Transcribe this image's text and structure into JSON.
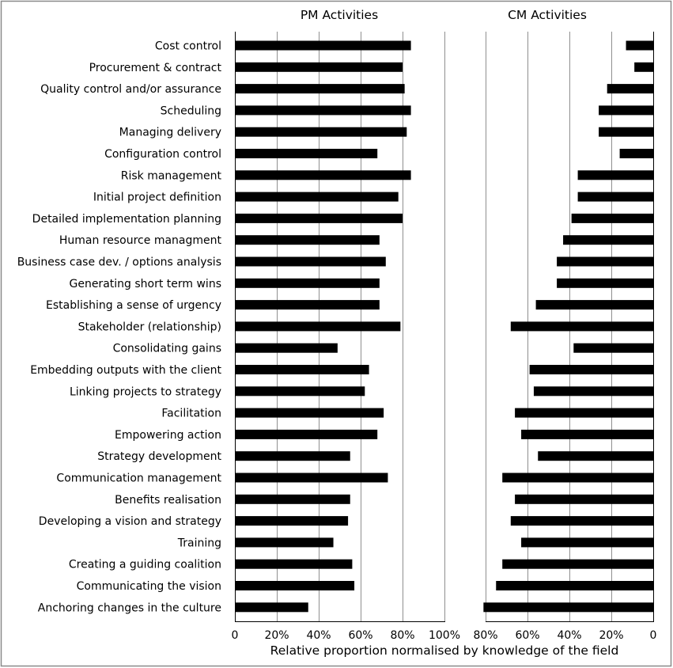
{
  "chart_data": {
    "type": "bar",
    "orientation": "horizontal",
    "categories": [
      "Cost control",
      "Procurement & contract",
      "Quality control and/or assurance",
      "Scheduling",
      "Managing delivery",
      "Configuration control",
      "Risk management",
      "Initial project definition",
      "Detailed implementation planning",
      "Human resource managment",
      "Business case dev. / options analysis",
      "Generating short term wins",
      "Establishing a sense of urgency",
      "Stakeholder (relationship)",
      "Consolidating gains",
      "Embedding outputs with the client",
      "Linking projects to strategy",
      "Facilitation",
      "Empowering action",
      "Strategy development",
      "Communication management",
      "Benefits realisation",
      "Developing a vision and strategy",
      "Training",
      "Creating a guiding coalition",
      "Communicating the vision",
      "Anchoring changes in the culture"
    ],
    "panels": [
      {
        "title": "PM Activities",
        "direction": "left-to-right",
        "xlim": [
          0,
          100
        ],
        "ticks": [
          "0",
          "20%",
          "40%",
          "60%",
          "80%",
          "100%"
        ],
        "tick_values": [
          0,
          20,
          40,
          60,
          80,
          100
        ],
        "values": [
          84,
          80,
          81,
          84,
          82,
          68,
          84,
          78,
          80,
          69,
          72,
          69,
          69,
          79,
          49,
          64,
          62,
          71,
          68,
          55,
          73,
          55,
          54,
          47,
          56,
          57,
          35
        ]
      },
      {
        "title": "CM Activities",
        "direction": "right-to-left",
        "xlim": [
          0,
          80
        ],
        "ticks": [
          "80%",
          "60%",
          "40%",
          "20%",
          "0"
        ],
        "tick_values": [
          80,
          60,
          40,
          20,
          0
        ],
        "values": [
          13,
          9,
          22,
          26,
          26,
          16,
          36,
          36,
          39,
          43,
          46,
          46,
          56,
          68,
          38,
          59,
          57,
          66,
          63,
          55,
          72,
          66,
          68,
          63,
          72,
          75,
          81
        ]
      }
    ],
    "xlabel": "Relative proportion normalised by knowledge of the field",
    "grid": true,
    "legend": "none"
  }
}
